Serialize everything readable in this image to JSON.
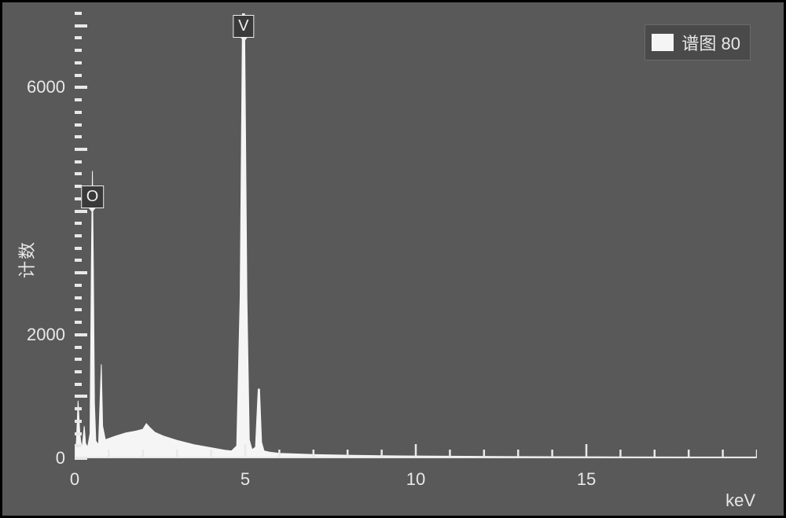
{
  "chart": {
    "type": "spectrum",
    "background_color": "#595959",
    "series_color": "#f5f5f5",
    "axis_color": "#e8e8e8",
    "text_color": "#e8e8e8",
    "label_fontsize": 22,
    "tick_fontsize": 22,
    "legend": {
      "label": "谱图 80",
      "swatch_color": "#f5f5f5",
      "bg": "#4a4a4a"
    },
    "ylabel": "计数",
    "xlabel": "keV",
    "xlim": [
      0,
      20
    ],
    "ylim": [
      0,
      7200
    ],
    "x_major_ticks": [
      0,
      5,
      10,
      15
    ],
    "x_minor_step": 1,
    "y_major_ticks": [
      0,
      2000,
      6000
    ],
    "y_dash_pattern": {
      "start": 0,
      "step": 200,
      "stop": 7200
    },
    "peak_labels": [
      {
        "element": "O",
        "x_keV": 0.52,
        "y_count": 3950
      },
      {
        "element": "V",
        "x_keV": 4.95,
        "y_count": 7200
      }
    ],
    "spectrum_points": [
      [
        0.0,
        60
      ],
      [
        0.05,
        260
      ],
      [
        0.1,
        930
      ],
      [
        0.15,
        420
      ],
      [
        0.18,
        260
      ],
      [
        0.22,
        180
      ],
      [
        0.28,
        520
      ],
      [
        0.32,
        240
      ],
      [
        0.38,
        180
      ],
      [
        0.45,
        400
      ],
      [
        0.49,
        3200
      ],
      [
        0.52,
        4650
      ],
      [
        0.55,
        3000
      ],
      [
        0.58,
        900
      ],
      [
        0.62,
        280
      ],
      [
        0.7,
        220
      ],
      [
        0.78,
        1520
      ],
      [
        0.82,
        520
      ],
      [
        0.9,
        300
      ],
      [
        1.0,
        320
      ],
      [
        1.2,
        360
      ],
      [
        1.5,
        410
      ],
      [
        1.8,
        440
      ],
      [
        2.0,
        470
      ],
      [
        2.1,
        560
      ],
      [
        2.2,
        500
      ],
      [
        2.35,
        420
      ],
      [
        2.6,
        360
      ],
      [
        3.0,
        290
      ],
      [
        3.5,
        220
      ],
      [
        4.0,
        170
      ],
      [
        4.4,
        130
      ],
      [
        4.6,
        120
      ],
      [
        4.75,
        200
      ],
      [
        4.85,
        2600
      ],
      [
        4.92,
        7200
      ],
      [
        4.95,
        7200
      ],
      [
        4.98,
        7200
      ],
      [
        5.05,
        2600
      ],
      [
        5.12,
        300
      ],
      [
        5.2,
        140
      ],
      [
        5.3,
        180
      ],
      [
        5.38,
        1120
      ],
      [
        5.42,
        1120
      ],
      [
        5.48,
        260
      ],
      [
        5.55,
        120
      ],
      [
        5.7,
        100
      ],
      [
        6.0,
        80
      ],
      [
        7.0,
        60
      ],
      [
        8.0,
        50
      ],
      [
        9.0,
        42
      ],
      [
        10.0,
        36
      ],
      [
        12.0,
        30
      ],
      [
        14.0,
        26
      ],
      [
        16.0,
        22
      ],
      [
        18.0,
        20
      ],
      [
        20.0,
        20
      ]
    ]
  }
}
